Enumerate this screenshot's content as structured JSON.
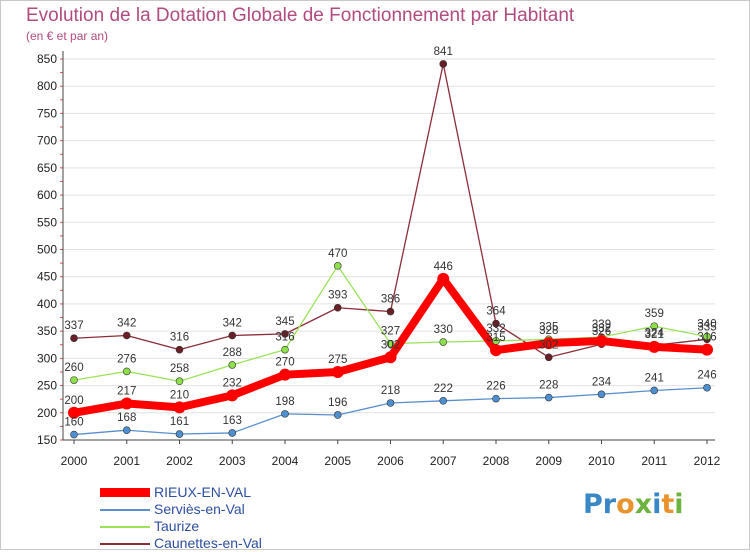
{
  "title": "Evolution de la Dotation Globale de Fonctionnement par Habitant",
  "subtitle": "(en € et par an)",
  "logo": {
    "text": "Proxiti",
    "letters": [
      "P",
      "r",
      "o",
      "x",
      "i",
      "t",
      "i"
    ],
    "colors": [
      "#3a87c8",
      "#3a87c8",
      "#e8932b",
      "#6cb33f",
      "#3a87c8",
      "#e8932b",
      "#6cb33f"
    ]
  },
  "chart_data": {
    "type": "line",
    "title": "Evolution de la Dotation Globale de Fonctionnement par Habitant",
    "subtitle": "(en € et par an)",
    "xlabel": "",
    "ylabel": "",
    "ylim": [
      150,
      850
    ],
    "yticks": [
      150,
      200,
      250,
      300,
      350,
      400,
      450,
      500,
      550,
      600,
      650,
      700,
      750,
      800,
      850
    ],
    "categories": [
      "2000",
      "2001",
      "2002",
      "2003",
      "2004",
      "2005",
      "2006",
      "2007",
      "2008",
      "2009",
      "2010",
      "2011",
      "2012"
    ],
    "grid": "horizontal",
    "legend_position": "bottom-left",
    "series": [
      {
        "name": "RIEUX-EN-VAL",
        "color": "#ff0000",
        "marker": "#ff0000",
        "values": [
          200,
          217,
          210,
          232,
          270,
          275,
          302,
          446,
          315,
          328,
          332,
          321,
          316
        ]
      },
      {
        "name": "Serviès-en-Val",
        "color": "#5a8fcc",
        "marker": "#4d8fd0",
        "values": [
          160,
          168,
          161,
          163,
          198,
          196,
          218,
          222,
          226,
          228,
          234,
          241,
          246
        ]
      },
      {
        "name": "Taurize",
        "color": "#9be25a",
        "marker": "#8ee04a",
        "values": [
          260,
          276,
          258,
          288,
          316,
          470,
          327,
          330,
          332,
          335,
          339,
          359,
          340
        ]
      },
      {
        "name": "Caunettes-en-Val",
        "color": "#8b2e3a",
        "marker": "#6a1f26",
        "values": [
          337,
          342,
          316,
          342,
          345,
          393,
          386,
          841,
          364,
          302,
          326,
          324,
          335
        ]
      }
    ]
  }
}
